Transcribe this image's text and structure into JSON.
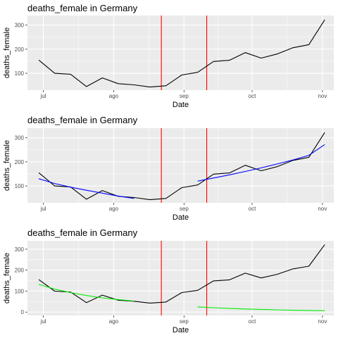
{
  "chart_data": [
    {
      "type": "line",
      "title": "deaths_female in Germany",
      "xlabel": "Date",
      "ylabel": "deaths_female",
      "x_ticks": [
        "jul",
        "ago",
        "sep",
        "oct",
        "nov"
      ],
      "x_tick_dates": [
        "2020-07-01",
        "2020-08-01",
        "2020-09-01",
        "2020-10-01",
        "2020-11-01"
      ],
      "y_ticks": [
        100,
        200,
        300
      ],
      "xlim": [
        "2020-06-24",
        "2020-11-06"
      ],
      "ylim": [
        30,
        340
      ],
      "grid": true,
      "vlines": [
        "2020-08-22",
        "2020-09-11"
      ],
      "series": [
        {
          "color": "#000000",
          "x": [
            "2020-06-29",
            "2020-07-06",
            "2020-07-13",
            "2020-07-20",
            "2020-07-27",
            "2020-08-03",
            "2020-08-10",
            "2020-08-17",
            "2020-08-24",
            "2020-08-31",
            "2020-09-07",
            "2020-09-14",
            "2020-09-21",
            "2020-09-28",
            "2020-10-05",
            "2020-10-12",
            "2020-10-19",
            "2020-10-26",
            "2020-11-02"
          ],
          "y": [
            155,
            100,
            96,
            45,
            81,
            57,
            52,
            43,
            48,
            93,
            104,
            149,
            154,
            186,
            163,
            180,
            206,
            219,
            322
          ]
        }
      ]
    },
    {
      "type": "line",
      "title": "deaths_female in Germany",
      "xlabel": "Date",
      "ylabel": "deaths_female",
      "x_ticks": [
        "jul",
        "ago",
        "sep",
        "oct",
        "nov"
      ],
      "x_tick_dates": [
        "2020-07-01",
        "2020-08-01",
        "2020-09-01",
        "2020-10-01",
        "2020-11-01"
      ],
      "y_ticks": [
        100,
        200,
        300
      ],
      "xlim": [
        "2020-06-24",
        "2020-11-06"
      ],
      "ylim": [
        30,
        340
      ],
      "grid": true,
      "vlines": [
        "2020-08-22",
        "2020-09-11"
      ],
      "series": [
        {
          "color": "#000000",
          "x": [
            "2020-06-29",
            "2020-07-06",
            "2020-07-13",
            "2020-07-20",
            "2020-07-27",
            "2020-08-03",
            "2020-08-10",
            "2020-08-17",
            "2020-08-24",
            "2020-08-31",
            "2020-09-07",
            "2020-09-14",
            "2020-09-21",
            "2020-09-28",
            "2020-10-05",
            "2020-10-12",
            "2020-10-19",
            "2020-10-26",
            "2020-11-02"
          ],
          "y": [
            155,
            100,
            96,
            45,
            81,
            57,
            52,
            43,
            48,
            93,
            104,
            149,
            154,
            186,
            163,
            180,
            206,
            219,
            322
          ]
        },
        {
          "color": "#0000ff",
          "x": [
            "2020-06-29",
            "2020-07-06",
            "2020-07-13",
            "2020-07-20",
            "2020-07-27",
            "2020-08-03",
            "2020-08-10"
          ],
          "y": [
            130,
            110,
            95,
            82,
            70,
            58,
            48
          ]
        },
        {
          "color": "#0000ff",
          "x": [
            "2020-09-07",
            "2020-09-14",
            "2020-09-21",
            "2020-09-28",
            "2020-10-05",
            "2020-10-12",
            "2020-10-19",
            "2020-10-26",
            "2020-11-02"
          ],
          "y": [
            120,
            133,
            146,
            160,
            175,
            191,
            208,
            227,
            272
          ]
        }
      ]
    },
    {
      "type": "line",
      "title": "deaths_female in Germany",
      "xlabel": "Date",
      "ylabel": "deaths_female",
      "x_ticks": [
        "jul",
        "ago",
        "sep",
        "oct",
        "nov"
      ],
      "x_tick_dates": [
        "2020-07-01",
        "2020-08-01",
        "2020-09-01",
        "2020-10-01",
        "2020-11-01"
      ],
      "y_ticks": [
        0,
        100,
        200,
        300
      ],
      "xlim": [
        "2020-06-24",
        "2020-11-06"
      ],
      "ylim": [
        -16,
        340
      ],
      "grid": true,
      "vlines": [
        "2020-08-22",
        "2020-09-11"
      ],
      "series": [
        {
          "color": "#000000",
          "x": [
            "2020-06-29",
            "2020-07-06",
            "2020-07-13",
            "2020-07-20",
            "2020-07-27",
            "2020-08-03",
            "2020-08-10",
            "2020-08-17",
            "2020-08-24",
            "2020-08-31",
            "2020-09-07",
            "2020-09-14",
            "2020-09-21",
            "2020-09-28",
            "2020-10-05",
            "2020-10-12",
            "2020-10-19",
            "2020-10-26",
            "2020-11-02"
          ],
          "y": [
            155,
            100,
            96,
            45,
            81,
            57,
            52,
            43,
            48,
            93,
            104,
            149,
            154,
            186,
            163,
            180,
            206,
            219,
            322
          ]
        },
        {
          "color": "#00ee00",
          "x": [
            "2020-06-29",
            "2020-07-06",
            "2020-07-13",
            "2020-07-20",
            "2020-07-27",
            "2020-08-03",
            "2020-08-10"
          ],
          "y": [
            132,
            110,
            93,
            79,
            68,
            60,
            53
          ]
        },
        {
          "color": "#00ee00",
          "x": [
            "2020-09-07",
            "2020-09-14",
            "2020-09-21",
            "2020-09-28",
            "2020-10-05",
            "2020-10-12",
            "2020-10-19",
            "2020-10-26",
            "2020-11-02"
          ],
          "y": [
            25,
            21,
            18,
            15,
            13,
            11,
            9,
            8,
            7
          ]
        }
      ]
    }
  ]
}
